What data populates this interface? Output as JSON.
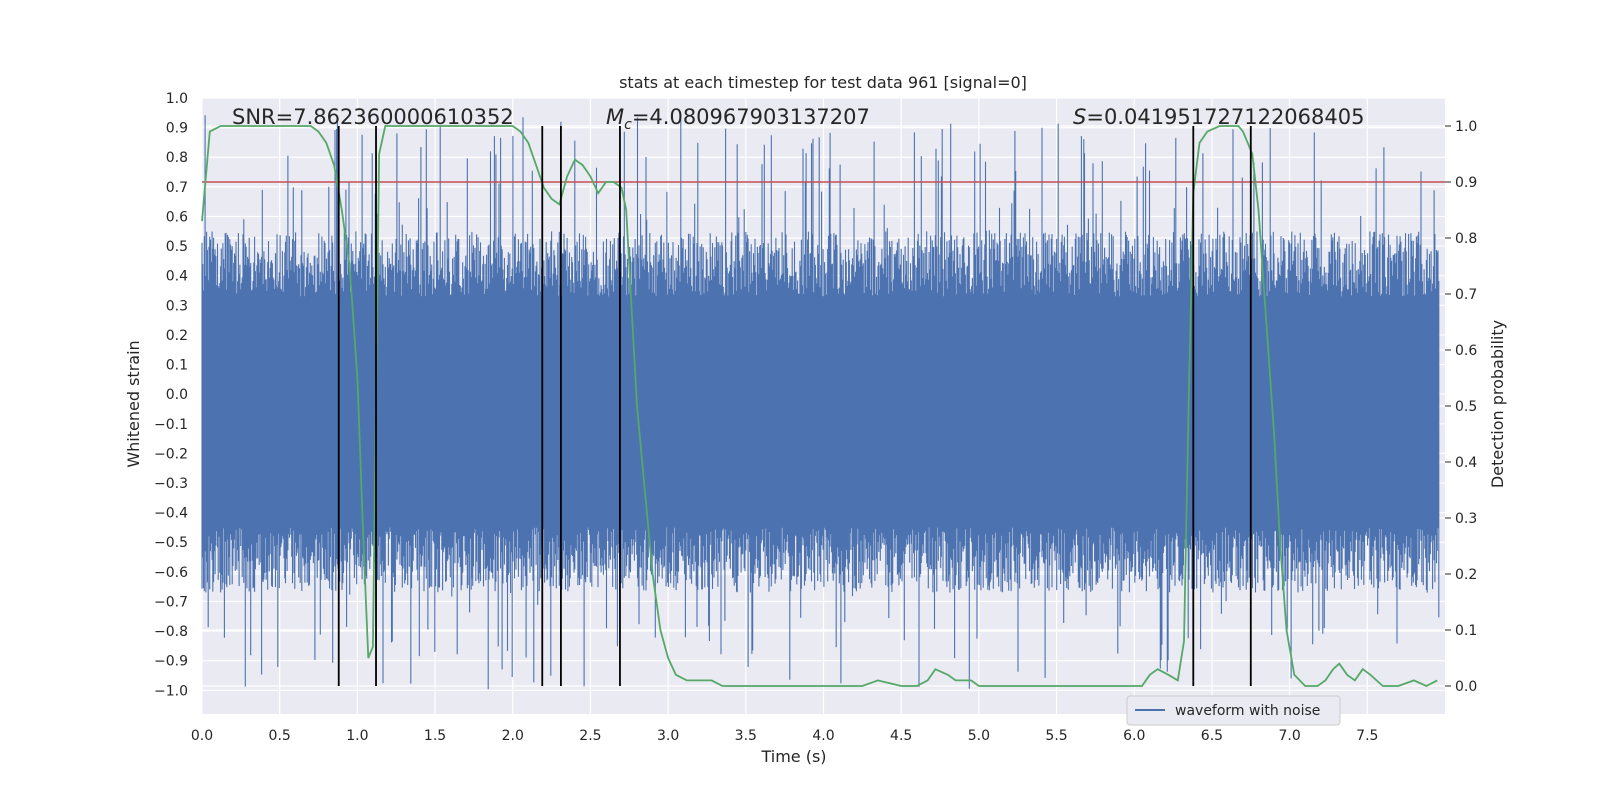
{
  "chart_data": {
    "type": "line",
    "title": "stats at each timestep for test data 961 [signal=0]",
    "xlabel": "Time (s)",
    "ylabel": "Whitened strain",
    "y2label": "Detection probability",
    "xlim": [
      0,
      8
    ],
    "ylim": [
      -1.08,
      1.0
    ],
    "y2lim": [
      -0.05,
      1.05
    ],
    "xticks": [
      0.0,
      0.5,
      1.0,
      1.5,
      2.0,
      2.5,
      3.0,
      3.5,
      4.0,
      4.5,
      5.0,
      5.5,
      6.0,
      6.5,
      7.0,
      7.5
    ],
    "xtick_labels": [
      "0.0",
      "0.5",
      "1.0",
      "1.5",
      "2.0",
      "2.5",
      "3.0",
      "3.5",
      "4.0",
      "4.5",
      "5.0",
      "5.5",
      "6.0",
      "6.5",
      "7.0",
      "7.5"
    ],
    "yticks": [
      1.0,
      0.9,
      0.8,
      0.7,
      0.6,
      0.5,
      0.4,
      0.3,
      0.2,
      0.1,
      0.0,
      -0.1,
      -0.2,
      -0.3,
      -0.4,
      -0.5,
      -0.6,
      -0.7,
      -0.8,
      -0.9,
      -1.0
    ],
    "ytick_labels": [
      "1.0",
      "0.9",
      "0.8",
      "0.7",
      "0.6",
      "0.5",
      "0.4",
      "0.3",
      "0.2",
      "0.1",
      "0.0",
      "−0.1",
      "−0.2",
      "−0.3",
      "−0.4",
      "−0.5",
      "−0.6",
      "−0.7",
      "−0.8",
      "−0.9",
      "−1.0"
    ],
    "y2ticks": [
      1.0,
      0.9,
      0.8,
      0.7,
      0.6,
      0.5,
      0.4,
      0.3,
      0.2,
      0.1,
      0.0
    ],
    "y2tick_labels": [
      "1.0",
      "0.9",
      "0.8",
      "0.7",
      "0.6",
      "0.5",
      "0.4",
      "0.3",
      "0.2",
      "0.1",
      "0.0"
    ],
    "annotations": {
      "snr": "SNR=7.862360000610352",
      "mc_symbol": "M",
      "mc_sub": "c",
      "mc_value": "=4.080967903137207",
      "s_symbol": "S",
      "s_value": "=0.041951727122068405"
    },
    "legend": {
      "label": "waveform with noise",
      "location": "lower-right"
    },
    "threshold": 0.9,
    "vertical_lines": [
      0.88,
      1.12,
      2.19,
      2.31,
      2.69,
      6.38,
      6.75
    ],
    "waveform": {
      "name": "waveform with noise",
      "color": "#4c72b0",
      "sample_count": 1600,
      "core_range": [
        -0.45,
        0.33
      ],
      "spike_envelope": [
        -1.0,
        0.95
      ]
    },
    "probability": {
      "name": "detection probability",
      "color": "#55a868",
      "x": [
        0.0,
        0.05,
        0.12,
        0.2,
        0.3,
        0.4,
        0.5,
        0.6,
        0.7,
        0.75,
        0.8,
        0.85,
        0.9,
        0.95,
        1.0,
        1.04,
        1.07,
        1.1,
        1.14,
        1.18,
        1.22,
        1.27,
        1.35,
        1.5,
        1.7,
        1.9,
        2.0,
        2.05,
        2.1,
        2.15,
        2.2,
        2.25,
        2.3,
        2.35,
        2.4,
        2.45,
        2.5,
        2.55,
        2.6,
        2.65,
        2.7,
        2.73,
        2.76,
        2.8,
        2.85,
        2.9,
        2.95,
        3.0,
        3.05,
        3.12,
        3.2,
        3.28,
        3.35,
        3.45,
        3.6,
        3.75,
        3.85,
        4.0,
        4.15,
        4.25,
        4.35,
        4.5,
        4.6,
        4.67,
        4.72,
        4.8,
        4.85,
        4.9,
        4.95,
        5.0,
        5.1,
        5.3,
        5.45,
        5.55,
        5.65,
        5.75,
        5.85,
        5.95,
        6.05,
        6.1,
        6.15,
        6.22,
        6.28,
        6.32,
        6.35,
        6.38,
        6.42,
        6.47,
        6.55,
        6.62,
        6.67,
        6.7,
        6.73,
        6.76,
        6.8,
        6.85,
        6.9,
        6.94,
        6.98,
        7.03,
        7.1,
        7.18,
        7.23,
        7.28,
        7.32,
        7.37,
        7.42,
        7.47,
        7.52,
        7.6,
        7.7,
        7.8,
        7.88,
        7.95
      ],
      "values": [
        0.83,
        0.99,
        1.0,
        1.0,
        1.0,
        1.0,
        1.0,
        1.0,
        1.0,
        0.99,
        0.97,
        0.93,
        0.85,
        0.75,
        0.55,
        0.25,
        0.05,
        0.07,
        0.95,
        1.0,
        1.0,
        1.0,
        1.0,
        1.0,
        1.0,
        1.0,
        1.0,
        0.99,
        0.97,
        0.93,
        0.89,
        0.87,
        0.86,
        0.91,
        0.94,
        0.93,
        0.91,
        0.88,
        0.9,
        0.9,
        0.89,
        0.85,
        0.7,
        0.5,
        0.35,
        0.2,
        0.1,
        0.05,
        0.02,
        0.01,
        0.01,
        0.01,
        0.0,
        0.0,
        0.0,
        0.0,
        0.0,
        0.0,
        0.0,
        0.0,
        0.01,
        0.0,
        0.0,
        0.01,
        0.03,
        0.02,
        0.01,
        0.01,
        0.01,
        0.0,
        0.0,
        0.0,
        0.0,
        0.0,
        0.0,
        0.0,
        0.0,
        0.0,
        0.0,
        0.02,
        0.03,
        0.02,
        0.01,
        0.08,
        0.5,
        0.88,
        0.97,
        0.99,
        1.0,
        1.0,
        1.0,
        0.99,
        0.97,
        0.95,
        0.85,
        0.65,
        0.45,
        0.25,
        0.1,
        0.02,
        0.0,
        0.0,
        0.01,
        0.03,
        0.04,
        0.02,
        0.01,
        0.03,
        0.02,
        0.0,
        0.0,
        0.01,
        0.0,
        0.01
      ]
    },
    "threshold_color": "#c44e52",
    "background": "#eaeaf2",
    "grid": true
  }
}
